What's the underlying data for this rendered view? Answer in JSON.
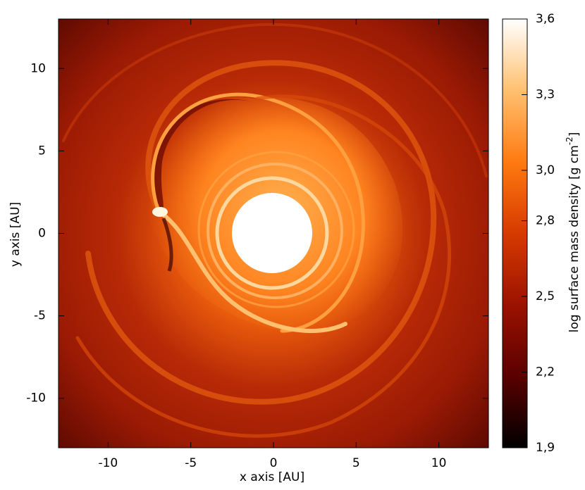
{
  "chart_data": {
    "type": "heatmap",
    "xlabel": "x axis [AU]",
    "ylabel": "y axis [AU]",
    "xlim": [
      -13,
      13
    ],
    "ylim": [
      -13,
      13
    ],
    "xticks": [
      -10,
      -5,
      0,
      5,
      10
    ],
    "yticks": [
      -10,
      -5,
      0,
      5,
      10
    ],
    "colorbar": {
      "label": {
        "text": "log surface mass density [g cm",
        "sup": "-2",
        "end": "]"
      },
      "clim": [
        1.9,
        3.6
      ],
      "ticks": [
        {
          "value": 1.9,
          "label": "1,9"
        },
        {
          "value": 2.2,
          "label": "2,2"
        },
        {
          "value": 2.5,
          "label": "2,5"
        },
        {
          "value": 2.8,
          "label": "2,8"
        },
        {
          "value": 3.0,
          "label": "3,0"
        },
        {
          "value": 3.3,
          "label": "3,3"
        },
        {
          "value": 3.6,
          "label": "3,6"
        }
      ],
      "colormap": [
        "#000000",
        "#5a0000",
        "#9c1200",
        "#d63a00",
        "#ff7a10",
        "#ffc070",
        "#ffffff"
      ]
    }
  }
}
